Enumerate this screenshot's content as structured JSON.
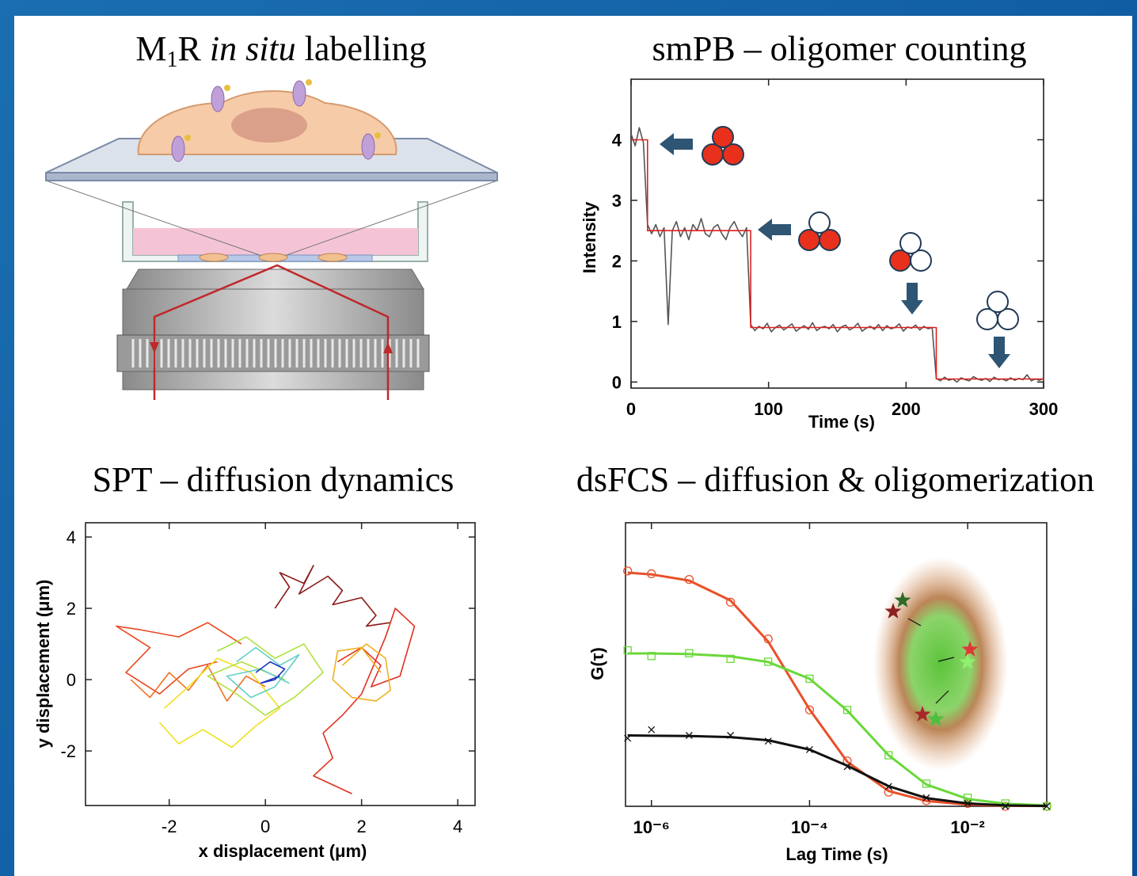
{
  "illustration": {
    "title": [
      "M",
      "1",
      "R ",
      "in situ",
      " labelling"
    ]
  },
  "chart_data": [
    {
      "type": "line",
      "title": "smPB – oligomer counting",
      "x_label": "Time (s)",
      "y_label": "Intensity",
      "xlim": [
        0,
        300
      ],
      "xticks": [
        0,
        100,
        200,
        300
      ],
      "ylim": [
        -0.1,
        5
      ],
      "yticks": [
        0,
        1,
        2,
        3,
        4
      ],
      "series": [
        {
          "color": "#555555",
          "x": [
            0,
            3,
            6,
            9,
            12,
            15,
            18,
            21,
            24,
            27,
            30,
            33,
            36,
            39,
            42,
            45,
            48,
            51,
            54,
            57,
            60,
            63,
            66,
            69,
            72,
            75,
            78,
            81,
            84,
            87,
            90,
            93,
            96,
            99,
            102,
            105,
            108,
            111,
            114,
            117,
            120,
            123,
            126,
            129,
            132,
            135,
            138,
            141,
            144,
            147,
            150,
            153,
            156,
            159,
            162,
            165,
            168,
            171,
            174,
            177,
            180,
            183,
            186,
            189,
            192,
            195,
            198,
            201,
            204,
            207,
            210,
            213,
            216,
            219,
            222,
            225,
            228,
            231,
            234,
            237,
            240,
            243,
            246,
            249,
            252,
            255,
            258,
            261,
            264,
            267,
            270,
            273,
            276,
            279,
            282,
            285,
            288,
            291,
            294,
            297,
            300
          ],
          "values": [
            4.1,
            3.9,
            4.2,
            3.95,
            2.6,
            2.45,
            2.6,
            2.4,
            2.55,
            0.95,
            2.5,
            2.65,
            2.4,
            2.55,
            2.35,
            2.6,
            2.5,
            2.7,
            2.45,
            2.4,
            2.55,
            2.6,
            2.45,
            2.35,
            2.55,
            2.65,
            2.5,
            2.4,
            2.55,
            0.95,
            0.85,
            0.92,
            0.88,
            0.97,
            0.83,
            0.9,
            0.94,
            0.86,
            0.91,
            0.96,
            0.84,
            0.89,
            0.93,
            0.87,
            0.98,
            0.85,
            0.9,
            0.92,
            0.88,
            0.95,
            0.83,
            0.91,
            0.94,
            0.86,
            0.9,
            0.97,
            0.84,
            0.89,
            0.92,
            0.87,
            0.95,
            0.85,
            0.93,
            0.88,
            0.9,
            0.96,
            0.84,
            0.91,
            0.89,
            0.94,
            0.86,
            0.92,
            0.88,
            0.9,
            0.06,
            0.02,
            0.08,
            0.03,
            0.05,
            0.0,
            0.07,
            0.04,
            0.02,
            0.09,
            0.05,
            0.03,
            0.06,
            0.01,
            0.08,
            0.04,
            0.05,
            0.02,
            0.07,
            0.03,
            0.06,
            0.04,
            0.12,
            0.02,
            0.05,
            0.03,
            0.06
          ]
        },
        {
          "color": "#e02020",
          "x": [
            0,
            12,
            12,
            87,
            87,
            222,
            222,
            300
          ],
          "values": [
            4,
            4,
            2.5,
            2.5,
            0.9,
            0.9,
            0.05,
            0.05
          ]
        }
      ]
    },
    {
      "type": "line",
      "title": "SPT – diffusion dynamics",
      "x_label": "x displacement (μm)",
      "y_label": "y displacement (μm)",
      "xlim": [
        -3.74,
        4.36
      ],
      "xticks": [
        -2,
        0,
        2,
        4
      ],
      "ylim": [
        -3.53,
        4.4
      ],
      "yticks": [
        -2,
        0,
        2,
        4
      ],
      "series": [
        {
          "color": "#8b1a1a",
          "x": [
            0.2,
            0.5,
            0.3,
            0.8,
            1.0,
            0.7,
            1.3,
            1.6,
            1.4,
            2.0,
            2.3,
            2.1,
            2.6
          ],
          "values": [
            2.0,
            2.6,
            3.0,
            2.7,
            3.2,
            2.4,
            2.9,
            2.5,
            2.1,
            2.3,
            1.8,
            1.5,
            1.6
          ]
        },
        {
          "color": "#e03020",
          "x": [
            1.5,
            2.0,
            2.4,
            2.2,
            2.8,
            3.1,
            2.7,
            2.5,
            2.0,
            1.6,
            1.2,
            1.4,
            1.0,
            1.8
          ],
          "values": [
            0.5,
            0.9,
            0.4,
            -0.2,
            0.1,
            1.5,
            2.0,
            1.2,
            -0.4,
            -1.0,
            -1.5,
            -2.2,
            -2.7,
            -3.2
          ]
        },
        {
          "color": "#e84a20",
          "x": [
            -0.5,
            -1.2,
            -1.8,
            -2.6,
            -3.1,
            -2.4,
            -2.9,
            -2.2,
            -1.6,
            -1.0
          ],
          "values": [
            1.0,
            1.6,
            1.2,
            1.4,
            1.5,
            0.9,
            0.2,
            -0.4,
            0.3,
            0.5
          ]
        },
        {
          "color": "#f07020",
          "x": [
            -2.8,
            -2.4,
            -2.0,
            -1.6,
            -1.2,
            -0.8,
            -0.4,
            0.0
          ],
          "values": [
            0.0,
            -0.5,
            0.2,
            -0.3,
            0.4,
            -0.6,
            0.1,
            -0.2
          ]
        },
        {
          "color": "#f0b020",
          "x": [
            1.6,
            2.1,
            2.5,
            2.6,
            2.3,
            1.8,
            1.4,
            1.5,
            2.0,
            2.4
          ],
          "values": [
            0.4,
            1.0,
            0.6,
            -0.3,
            -0.6,
            -0.5,
            0.0,
            0.8,
            0.9,
            0.2
          ]
        },
        {
          "color": "#f0e020",
          "x": [
            -2.2,
            -1.8,
            -1.3,
            -0.7,
            -0.2,
            0.3,
            -0.3,
            -1.0,
            -1.6,
            -2.1
          ],
          "values": [
            -1.2,
            -1.8,
            -1.4,
            -1.9,
            -1.3,
            -0.8,
            0.2,
            0.6,
            -0.2,
            -0.8
          ]
        },
        {
          "color": "#b0e040",
          "x": [
            -1.0,
            -0.4,
            0.2,
            0.8,
            1.2,
            0.6,
            0.0,
            -0.6,
            -1.2,
            -0.5,
            0.4
          ],
          "values": [
            0.8,
            1.2,
            0.6,
            1.0,
            0.2,
            -0.5,
            -1.0,
            -0.4,
            0.1,
            0.5,
            0.0
          ]
        },
        {
          "color": "#60d0c8",
          "x": [
            -0.6,
            -0.2,
            0.3,
            0.7,
            0.2,
            -0.3,
            -0.8,
            -0.1,
            0.5
          ],
          "values": [
            0.5,
            0.9,
            0.4,
            0.7,
            -0.2,
            -0.5,
            0.1,
            0.3,
            -0.1
          ]
        },
        {
          "color": "#2030c0",
          "x": [
            -0.2,
            0.1,
            0.4,
            0.2,
            -0.1,
            0.3
          ],
          "values": [
            0.2,
            0.5,
            0.3,
            0.0,
            -0.1,
            0.1
          ]
        }
      ]
    },
    {
      "type": "line",
      "title": "dsFCS – diffusion & oligomerization",
      "x_label": "Lag Time (s)",
      "y_label": "G(τ)",
      "xscale": "log",
      "xlim": [
        4.7e-07,
        0.1
      ],
      "xticks": [
        {
          "value": 1e-06,
          "label": "10⁻⁶"
        },
        {
          "value": 0.0001,
          "label": "10⁻⁴"
        },
        {
          "value": 0.01,
          "label": "10⁻²"
        }
      ],
      "ylim": [
        0,
        1
      ],
      "x": [
        5e-07,
        1e-06,
        3e-06,
        1e-05,
        3e-05,
        0.0001,
        0.0003,
        0.001,
        0.003,
        0.01,
        0.03,
        0.1
      ],
      "series": [
        {
          "color": "#e8502a",
          "marker": "circle",
          "values": [
            0.83,
            0.82,
            0.8,
            0.72,
            0.59,
            0.34,
            0.16,
            0.05,
            0.02,
            0.01,
            0.0,
            0.0
          ],
          "fit": [
            0.824,
            0.818,
            0.796,
            0.726,
            0.581,
            0.342,
            0.157,
            0.054,
            0.019,
            0.006,
            0.002,
            0.001
          ]
        },
        {
          "color": "#6ad83a",
          "marker": "square",
          "values": [
            0.55,
            0.53,
            0.54,
            0.52,
            0.51,
            0.45,
            0.34,
            0.18,
            0.08,
            0.03,
            0.01,
            0.0
          ],
          "fit": [
            0.539,
            0.539,
            0.537,
            0.529,
            0.509,
            0.45,
            0.3375,
            0.18,
            0.077,
            0.026,
            0.009,
            0.003
          ]
        },
        {
          "color": "#111111",
          "marker": "x",
          "values": [
            0.24,
            0.27,
            0.25,
            0.25,
            0.23,
            0.2,
            0.14,
            0.07,
            0.03,
            0.01,
            0.0,
            0.0
          ],
          "fit": [
            0.25,
            0.249,
            0.248,
            0.244,
            0.233,
            0.2,
            0.143,
            0.071,
            0.029,
            0.01,
            0.003,
            0.001
          ]
        }
      ]
    }
  ]
}
